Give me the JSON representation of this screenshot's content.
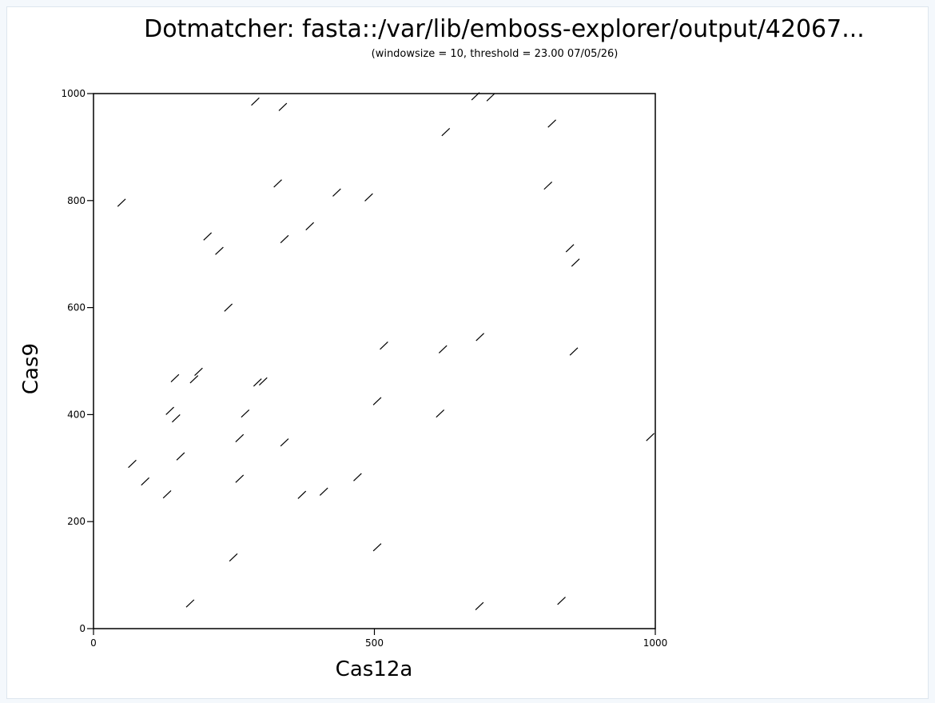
{
  "chart_data": {
    "type": "scatter",
    "title": "Dotmatcher: fasta::/var/lib/emboss-explorer/output/42067...",
    "subtitle": "(windowsize = 10, threshold = 23.00  07/05/26)",
    "xlabel": "Cas12a",
    "ylabel": "Cas9",
    "xlim": [
      0,
      1000
    ],
    "ylim": [
      0,
      1000
    ],
    "x_ticks": [
      "0",
      "500",
      "1000"
    ],
    "y_ticks": [
      "0",
      "200",
      "400",
      "600",
      "800",
      "1000"
    ],
    "grid": false,
    "segment_length": 14,
    "color": "#000000",
    "segments": [
      {
        "x": 288,
        "y": 985
      },
      {
        "x": 337,
        "y": 975
      },
      {
        "x": 680,
        "y": 995
      },
      {
        "x": 707,
        "y": 993
      },
      {
        "x": 627,
        "y": 928
      },
      {
        "x": 816,
        "y": 944
      },
      {
        "x": 50,
        "y": 796
      },
      {
        "x": 328,
        "y": 832
      },
      {
        "x": 433,
        "y": 815
      },
      {
        "x": 490,
        "y": 806
      },
      {
        "x": 809,
        "y": 828
      },
      {
        "x": 203,
        "y": 733
      },
      {
        "x": 385,
        "y": 752
      },
      {
        "x": 340,
        "y": 728
      },
      {
        "x": 224,
        "y": 706
      },
      {
        "x": 848,
        "y": 711
      },
      {
        "x": 858,
        "y": 684
      },
      {
        "x": 240,
        "y": 600
      },
      {
        "x": 517,
        "y": 529
      },
      {
        "x": 622,
        "y": 522
      },
      {
        "x": 688,
        "y": 545
      },
      {
        "x": 855,
        "y": 518
      },
      {
        "x": 145,
        "y": 468
      },
      {
        "x": 187,
        "y": 480
      },
      {
        "x": 179,
        "y": 466
      },
      {
        "x": 292,
        "y": 460
      },
      {
        "x": 302,
        "y": 462
      },
      {
        "x": 136,
        "y": 407
      },
      {
        "x": 147,
        "y": 393
      },
      {
        "x": 270,
        "y": 402
      },
      {
        "x": 505,
        "y": 425
      },
      {
        "x": 617,
        "y": 402
      },
      {
        "x": 260,
        "y": 356
      },
      {
        "x": 340,
        "y": 348
      },
      {
        "x": 991,
        "y": 358
      },
      {
        "x": 69,
        "y": 308
      },
      {
        "x": 155,
        "y": 322
      },
      {
        "x": 92,
        "y": 275
      },
      {
        "x": 131,
        "y": 251
      },
      {
        "x": 260,
        "y": 280
      },
      {
        "x": 371,
        "y": 250
      },
      {
        "x": 410,
        "y": 256
      },
      {
        "x": 470,
        "y": 283
      },
      {
        "x": 505,
        "y": 152
      },
      {
        "x": 249,
        "y": 133
      },
      {
        "x": 172,
        "y": 47
      },
      {
        "x": 687,
        "y": 42
      },
      {
        "x": 833,
        "y": 52
      }
    ]
  }
}
